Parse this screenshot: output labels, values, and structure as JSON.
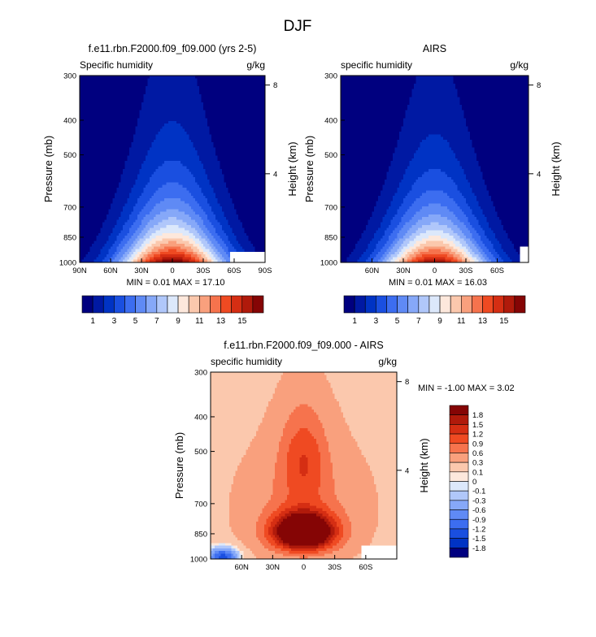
{
  "page_title": "DJF",
  "chart_data": [
    {
      "type": "heatmap",
      "title": "f.e11.rbn.F2000.f09_f09.000 (yrs 2-5)",
      "left_label": "Specific humidity",
      "right_label": "g/kg",
      "ylabel": "Pressure (mb)",
      "right_axis_label": "Height (km)",
      "x_ticks": [
        "90N",
        "60N",
        "30N",
        "0",
        "30S",
        "60S",
        "90S"
      ],
      "x_tick_values": [
        90,
        60,
        30,
        0,
        -30,
        -60,
        -90
      ],
      "xlim": [
        90,
        -90
      ],
      "y_ticks": [
        "300",
        "400",
        "500",
        "700",
        "850",
        "1000"
      ],
      "y_tick_values": [
        300,
        400,
        500,
        700,
        850,
        1000
      ],
      "ylim": [
        1000,
        300
      ],
      "y_scale": "log",
      "height_ticks": [
        "8",
        "4"
      ],
      "height_tick_values": [
        8,
        4
      ],
      "summary": {
        "min_label": "MIN =",
        "min": "0.01",
        "max_label": "MAX =",
        "max": "17.10"
      },
      "field": {
        "peak_lat": 0,
        "peak_value": 17.1,
        "halfwidth": 55,
        "decay_per_100mb": 0.36,
        "mask_lat_max": -55,
        "mask_p_min": 930
      }
    },
    {
      "type": "heatmap",
      "title": "AIRS",
      "left_label": "specific humidity",
      "right_label": "g/kg",
      "ylabel": "Pressure (mb)",
      "right_axis_label": "Height (km)",
      "x_ticks": [
        "60N",
        "30N",
        "0",
        "30S",
        "60S"
      ],
      "x_tick_values": [
        60,
        30,
        0,
        -30,
        -60
      ],
      "xlim": [
        90,
        -90
      ],
      "y_ticks": [
        "300",
        "400",
        "500",
        "700",
        "850",
        "1000"
      ],
      "y_tick_values": [
        300,
        400,
        500,
        700,
        850,
        1000
      ],
      "ylim": [
        1000,
        300
      ],
      "y_scale": "log",
      "height_ticks": [
        "8",
        "4"
      ],
      "height_tick_values": [
        8,
        4
      ],
      "summary": {
        "min_label": "MIN =",
        "min": "0.01",
        "max_label": "MAX =",
        "max": "16.03"
      },
      "field": {
        "peak_lat": 0,
        "peak_value": 16.0,
        "halfwidth": 54,
        "decay_per_100mb": 0.37,
        "mask_lat_max": -82,
        "mask_p_min": 900
      }
    },
    {
      "type": "heatmap",
      "title": "f.e11.rbn.F2000.f09_f09.000 - AIRS",
      "left_label": "specific humidity",
      "right_label": "g/kg",
      "ylabel": "Pressure (mb)",
      "right_axis_label": "Height (km)",
      "x_ticks": [
        "60N",
        "30N",
        "0",
        "30S",
        "60S"
      ],
      "x_tick_values": [
        60,
        30,
        0,
        -30,
        -60
      ],
      "xlim": [
        90,
        -90
      ],
      "y_ticks": [
        "300",
        "400",
        "500",
        "700",
        "850",
        "1000"
      ],
      "y_tick_values": [
        300,
        400,
        500,
        700,
        850,
        1000
      ],
      "ylim": [
        1000,
        300
      ],
      "y_scale": "log",
      "height_ticks": [
        "8",
        "4"
      ],
      "height_tick_values": [
        8,
        4
      ],
      "summary": {
        "min_label": "MIN =",
        "min": "-1.00",
        "max_label": "MAX =",
        "max": "3.02"
      },
      "field": {
        "mask_lat_max": -55,
        "mask_p_min": 920
      }
    }
  ],
  "colorbar_abs": {
    "labels": [
      "1",
      "3",
      "5",
      "7",
      "9",
      "11",
      "13",
      "15"
    ],
    "colors": [
      "#00007f",
      "#0019a3",
      "#0033c4",
      "#1a4fe0",
      "#3c6df0",
      "#5f8af5",
      "#86a8f8",
      "#b0c7fa",
      "#dce8fb",
      "#fde8dc",
      "#fbc8ad",
      "#f9a07d",
      "#f6734d",
      "#ef4a22",
      "#d52e13",
      "#b01a0b",
      "#850505"
    ]
  },
  "colorbar_diff": {
    "labels": [
      "1.8",
      "1.5",
      "1.2",
      "0.9",
      "0.6",
      "0.3",
      "0.1",
      "0",
      "-0.1",
      "-0.3",
      "-0.6",
      "-0.9",
      "-1.2",
      "-1.5",
      "-1.8"
    ],
    "colors": [
      "#850505",
      "#b01a0b",
      "#d52e13",
      "#ef4a22",
      "#f6734d",
      "#f9a07d",
      "#fbc8ad",
      "#fde8dc",
      "#dce8fb",
      "#b0c7fa",
      "#86a8f8",
      "#5f8af5",
      "#3c6df0",
      "#1a4fe0",
      "#0033c4",
      "#00007f"
    ]
  }
}
